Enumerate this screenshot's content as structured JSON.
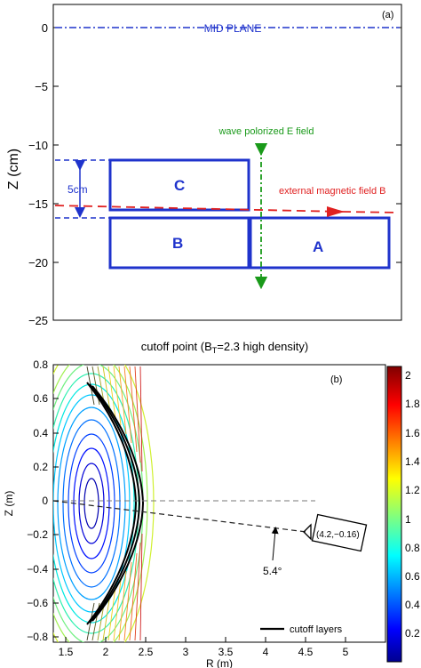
{
  "panel_a": {
    "tag": "(a)",
    "ylabel": "Z (cm)",
    "yticks": [
      "0",
      "−5",
      "−10",
      "−15",
      "−20",
      "−25"
    ],
    "mid_plane": "MID PLANE",
    "wave_label": "wave polorized E field",
    "field_label": "external magnetic field B",
    "dim_label": "5cm",
    "box_c": "C",
    "box_b": "B",
    "box_a": "A",
    "colors": {
      "blue": "#1f33cc",
      "green": "#1a9a1a",
      "red": "#e02020"
    }
  },
  "panel_b": {
    "title_pre": "cutoff point (B",
    "title_sub": "T",
    "title_post": "=2.3 high density)",
    "tag": "(b)",
    "xlabel": "R (m)",
    "ylabel": "Z (m)",
    "xticks": [
      "1.5",
      "2",
      "2.5",
      "3",
      "3.5",
      "4",
      "4.5",
      "5"
    ],
    "yticks": [
      "0.8",
      "0.6",
      "0.4",
      "0.2",
      "0",
      "−0.2",
      "−0.4",
      "−0.6",
      "−0.8"
    ],
    "antenna_label": "(4.2,−0.16)",
    "angle_label": "5.4°",
    "legend_label": "cutoff layers",
    "colorbar_ticks": [
      "2",
      "1.8",
      "1.6",
      "1.4",
      "1.2",
      "1",
      "0.8",
      "0.6",
      "0.4",
      "0.2"
    ]
  }
}
